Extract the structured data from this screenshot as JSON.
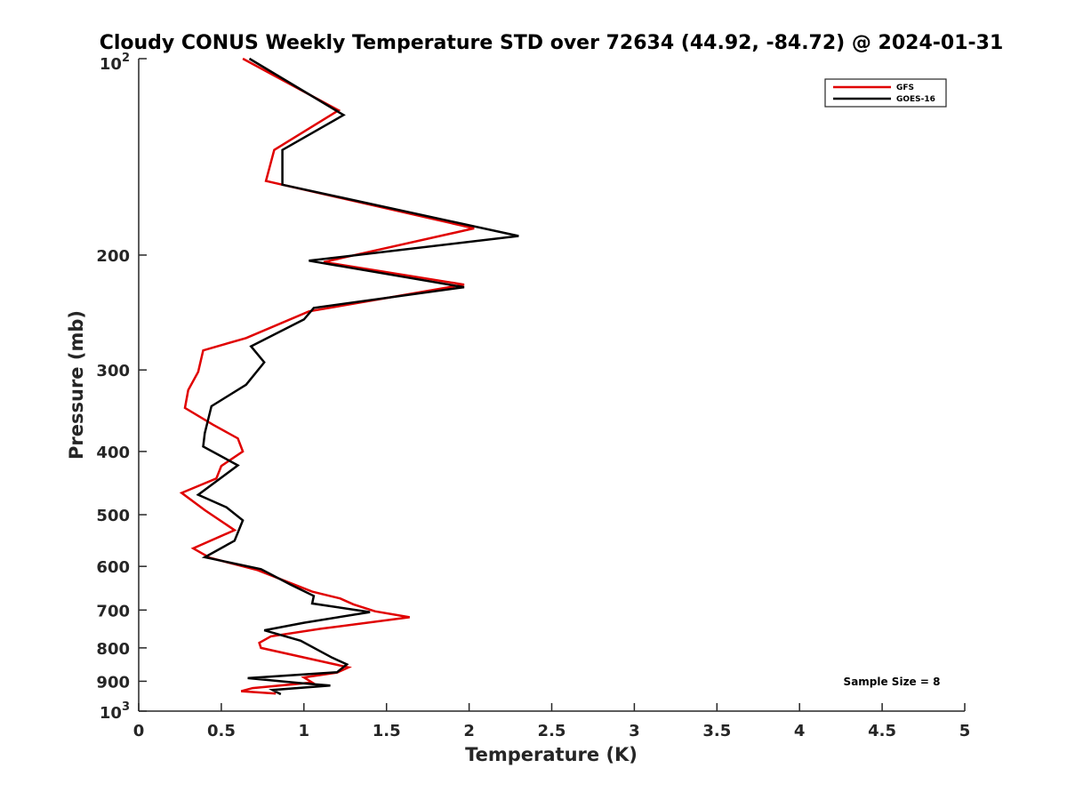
{
  "chart_data": {
    "type": "line",
    "title": "Cloudy CONUS Weekly Temperature STD over 72634 (44.92, -84.72) @ 2024-01-31",
    "xlabel": "Temperature (K)",
    "ylabel": "Pressure (mb)",
    "xlim": [
      0,
      5
    ],
    "ylim": [
      100,
      1000
    ],
    "y_scale": "log",
    "y_reversed": true,
    "x_ticks": [
      "0",
      "0.5",
      "1",
      "1.5",
      "2",
      "2.5",
      "3",
      "3.5",
      "4",
      "4.5",
      "5"
    ],
    "y_ticks": [
      {
        "value": 100,
        "base": "10",
        "exp": "2"
      },
      {
        "value": 200,
        "label": "200"
      },
      {
        "value": 300,
        "label": "300"
      },
      {
        "value": 400,
        "label": "400"
      },
      {
        "value": 500,
        "label": "500"
      },
      {
        "value": 600,
        "label": "600"
      },
      {
        "value": 700,
        "label": "700"
      },
      {
        "value": 800,
        "label": "800"
      },
      {
        "value": 900,
        "label": "900"
      },
      {
        "value": 1000,
        "base": "10",
        "exp": "3"
      }
    ],
    "grid": false,
    "legend_position": "top-right",
    "annotation": "Sample Size = 8",
    "series": [
      {
        "name": "GFS",
        "color": "#e00000",
        "points": [
          [
            0.63,
            100
          ],
          [
            1.21,
            120
          ],
          [
            0.82,
            138
          ],
          [
            0.77,
            154
          ],
          [
            2.03,
            182
          ],
          [
            1.12,
            205
          ],
          [
            1.97,
            222
          ],
          [
            1.03,
            244
          ],
          [
            0.65,
            268
          ],
          [
            0.39,
            280
          ],
          [
            0.36,
            302
          ],
          [
            0.3,
            322
          ],
          [
            0.28,
            343
          ],
          [
            0.45,
            364
          ],
          [
            0.6,
            382
          ],
          [
            0.63,
            400
          ],
          [
            0.5,
            421
          ],
          [
            0.47,
            440
          ],
          [
            0.26,
            463
          ],
          [
            0.4,
            492
          ],
          [
            0.58,
            528
          ],
          [
            0.33,
            563
          ],
          [
            0.43,
            582
          ],
          [
            0.72,
            608
          ],
          [
            1.05,
            656
          ],
          [
            1.22,
            672
          ],
          [
            1.3,
            686
          ],
          [
            1.43,
            703
          ],
          [
            1.64,
            718
          ],
          [
            1.1,
            748
          ],
          [
            0.8,
            768
          ],
          [
            0.73,
            786
          ],
          [
            0.74,
            800
          ],
          [
            1.27,
            857
          ],
          [
            1.2,
            873
          ],
          [
            1.0,
            888
          ],
          [
            1.05,
            904
          ],
          [
            0.69,
            922
          ],
          [
            0.62,
            932
          ],
          [
            0.83,
            940
          ]
        ]
      },
      {
        "name": "GOES-16",
        "color": "#000000",
        "points": [
          [
            0.67,
            100
          ],
          [
            1.24,
            122
          ],
          [
            0.87,
            138
          ],
          [
            0.87,
            156
          ],
          [
            2.3,
            187
          ],
          [
            1.03,
            204
          ],
          [
            1.97,
            224
          ],
          [
            1.06,
            241
          ],
          [
            1.0,
            251
          ],
          [
            0.68,
            276
          ],
          [
            0.76,
            292
          ],
          [
            0.65,
            316
          ],
          [
            0.44,
            341
          ],
          [
            0.4,
            375
          ],
          [
            0.39,
            393
          ],
          [
            0.6,
            420
          ],
          [
            0.36,
            466
          ],
          [
            0.53,
            487
          ],
          [
            0.63,
            510
          ],
          [
            0.58,
            548
          ],
          [
            0.4,
            581
          ],
          [
            0.74,
            606
          ],
          [
            0.92,
            640
          ],
          [
            1.06,
            666
          ],
          [
            1.05,
            684
          ],
          [
            1.4,
            705
          ],
          [
            1.0,
            732
          ],
          [
            0.76,
            752
          ],
          [
            0.98,
            780
          ],
          [
            1.17,
            828
          ],
          [
            1.26,
            848
          ],
          [
            1.2,
            872
          ],
          [
            0.66,
            890
          ],
          [
            0.98,
            906
          ],
          [
            1.16,
            914
          ],
          [
            0.81,
            928
          ],
          [
            0.86,
            942
          ]
        ]
      }
    ]
  }
}
